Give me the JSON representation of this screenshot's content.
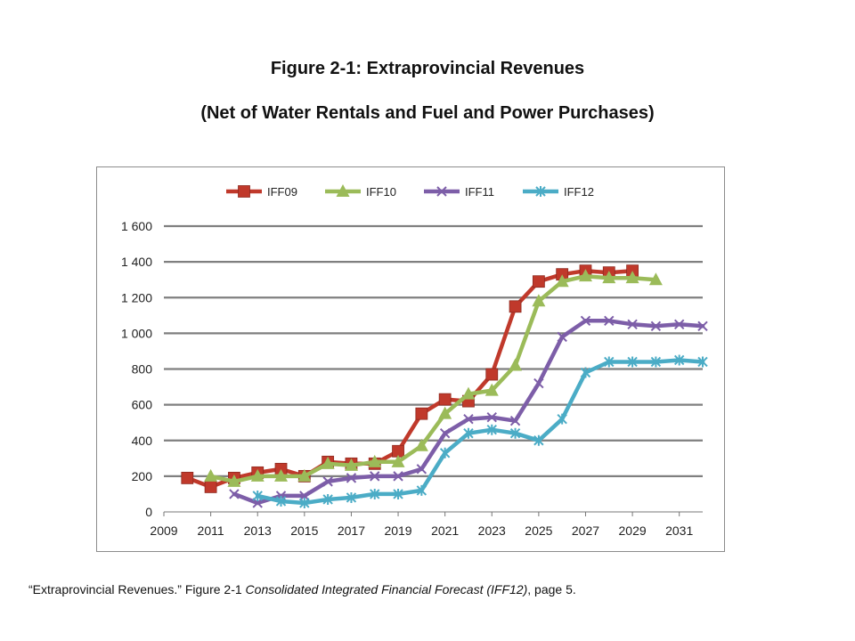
{
  "figure": {
    "title": "Figure 2-1: Extraprovincial Revenues",
    "subtitle": "(Net of Water Rentals and Fuel and Power Purchases)"
  },
  "caption": {
    "part1": "“Extraprovincial Revenues.” Figure 2-1 ",
    "italic": "Consolidated Integrated Financial Forecast (IFF12)",
    "part2": ", page 5."
  },
  "chart_data": {
    "type": "line",
    "title": "Figure 2-1: Extraprovincial Revenues",
    "subtitle": "(Net of Water Rentals and Fuel and Power Purchases)",
    "xlabel": "",
    "ylabel": "",
    "xlim": [
      2009,
      2032
    ],
    "ylim": [
      0,
      1600
    ],
    "xticks": [
      2009,
      2011,
      2013,
      2015,
      2017,
      2019,
      2021,
      2023,
      2025,
      2027,
      2029,
      2031
    ],
    "yticks": [
      0,
      200,
      400,
      600,
      800,
      1000,
      1200,
      1400,
      1600
    ],
    "ytick_labels": [
      "0",
      "200",
      "400",
      "600",
      "800",
      "1 000",
      "1 200",
      "1 400",
      "1 600"
    ],
    "grid": "horizontal",
    "legend_position": "top",
    "series": [
      {
        "name": "IFF09",
        "color": "#c0392b",
        "marker": "square",
        "x": [
          2010,
          2011,
          2012,
          2013,
          2014,
          2015,
          2016,
          2017,
          2018,
          2019,
          2020,
          2021,
          2022,
          2023,
          2024,
          2025,
          2026,
          2027,
          2028,
          2029
        ],
        "y": [
          190,
          140,
          190,
          220,
          240,
          200,
          280,
          270,
          270,
          340,
          550,
          630,
          620,
          770,
          1150,
          1290,
          1330,
          1350,
          1340,
          1350
        ]
      },
      {
        "name": "IFF10",
        "color": "#9bbb59",
        "marker": "triangle",
        "x": [
          2011,
          2012,
          2013,
          2014,
          2015,
          2016,
          2017,
          2018,
          2019,
          2020,
          2021,
          2022,
          2023,
          2024,
          2025,
          2026,
          2027,
          2028,
          2029,
          2030
        ],
        "y": [
          200,
          170,
          200,
          200,
          200,
          270,
          260,
          280,
          280,
          370,
          550,
          660,
          680,
          820,
          1180,
          1290,
          1320,
          1310,
          1310,
          1300
        ]
      },
      {
        "name": "IFF11",
        "color": "#7d5ea8",
        "marker": "x",
        "x": [
          2012,
          2013,
          2014,
          2015,
          2016,
          2017,
          2018,
          2019,
          2020,
          2021,
          2022,
          2023,
          2024,
          2025,
          2026,
          2027,
          2028,
          2029,
          2030,
          2031,
          2032
        ],
        "y": [
          100,
          50,
          90,
          90,
          170,
          190,
          200,
          200,
          240,
          440,
          520,
          530,
          510,
          720,
          980,
          1070,
          1070,
          1050,
          1040,
          1050,
          1040
        ]
      },
      {
        "name": "IFF12",
        "color": "#4bacc6",
        "marker": "star",
        "x": [
          2013,
          2014,
          2015,
          2016,
          2017,
          2018,
          2019,
          2020,
          2021,
          2022,
          2023,
          2024,
          2025,
          2026,
          2027,
          2028,
          2029,
          2030,
          2031,
          2032
        ],
        "y": [
          90,
          60,
          50,
          70,
          80,
          100,
          100,
          120,
          330,
          440,
          460,
          440,
          400,
          520,
          780,
          840,
          840,
          840,
          850,
          840
        ]
      }
    ]
  }
}
